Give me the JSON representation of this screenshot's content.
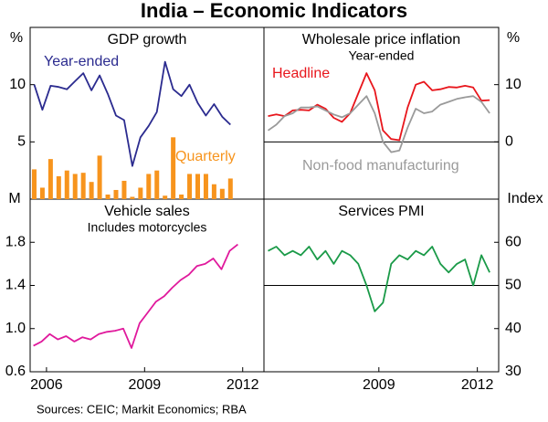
{
  "title": "India – Economic Indicators",
  "source": "Sources: CEIC; Markit Economics; RBA",
  "chart_data": [
    {
      "type": "combo",
      "title": "GDP growth",
      "y_unit": "%",
      "xlim": [
        2005.5,
        2012.65
      ],
      "ylim": [
        0,
        15
      ],
      "yticks": [
        5,
        10
      ],
      "x": [
        2005.625,
        2005.875,
        2006.125,
        2006.375,
        2006.625,
        2006.875,
        2007.125,
        2007.375,
        2007.625,
        2007.875,
        2008.125,
        2008.375,
        2008.625,
        2008.875,
        2009.125,
        2009.375,
        2009.625,
        2009.875,
        2010.125,
        2010.375,
        2010.625,
        2010.875,
        2011.125,
        2011.375,
        2011.625
      ],
      "series": [
        {
          "name": "Year-ended",
          "type": "line",
          "color": "#2b2b8f",
          "values": [
            10,
            7.8,
            9.9,
            9.8,
            9.6,
            10.3,
            11.0,
            9.5,
            10.8,
            9.2,
            7.3,
            6.9,
            2.9,
            5.4,
            6.4,
            7.6,
            12.0,
            9.6,
            9.0,
            10.0,
            8.4,
            7.3,
            8.3,
            7.2,
            6.5
          ]
        },
        {
          "name": "Quarterly",
          "type": "bar",
          "color": "#f7941d",
          "values": [
            2.6,
            1.0,
            3.5,
            2.0,
            2.5,
            2.2,
            2.3,
            1.5,
            3.8,
            0.4,
            0.8,
            1.6,
            0.2,
            1.0,
            2.2,
            2.5,
            0.3,
            5.4,
            0.4,
            2.2,
            2.2,
            2.2,
            1.3,
            0.9,
            1.8
          ]
        }
      ]
    },
    {
      "type": "line",
      "title": "Wholesale price inflation",
      "subtitle": "Year-ended",
      "y_unit": "%",
      "xlim": [
        2005.5,
        2012.65
      ],
      "ylim": [
        -10,
        20
      ],
      "yticks": [
        0,
        10
      ],
      "hline": 0,
      "x": [
        2005.625,
        2005.875,
        2006.125,
        2006.375,
        2006.625,
        2006.875,
        2007.125,
        2007.375,
        2007.625,
        2007.875,
        2008.125,
        2008.375,
        2008.625,
        2008.875,
        2009.125,
        2009.375,
        2009.625,
        2009.875,
        2010.125,
        2010.375,
        2010.625,
        2010.875,
        2011.125,
        2011.375,
        2011.625,
        2011.875,
        2012.125,
        2012.375
      ],
      "series": [
        {
          "name": "Headline",
          "color": "#e8161c",
          "values": [
            4.5,
            4.8,
            4.5,
            5.5,
            5.6,
            5.5,
            6.5,
            5.8,
            4.2,
            3.5,
            5.0,
            8.5,
            12.0,
            9.0,
            2.0,
            0.5,
            0.3,
            6.0,
            10.0,
            10.5,
            9.0,
            9.2,
            9.6,
            9.5,
            9.8,
            9.5,
            7.2,
            7.3
          ]
        },
        {
          "name": "Non-food manufacturing",
          "color": "#9a9a9a",
          "values": [
            2.0,
            3.0,
            4.5,
            5.0,
            6.0,
            6.0,
            6.2,
            5.5,
            4.8,
            4.3,
            5.0,
            6.5,
            8.0,
            5.0,
            0.0,
            -1.8,
            -1.5,
            2.5,
            5.8,
            5.0,
            5.3,
            6.5,
            7.0,
            7.5,
            7.8,
            8.0,
            7.0,
            5.0
          ]
        }
      ]
    },
    {
      "type": "line",
      "title": "Vehicle sales",
      "subtitle": "Includes motorcycles",
      "y_unit": "M",
      "xlim": [
        2005.5,
        2012.65
      ],
      "ylim": [
        0.6,
        2.2
      ],
      "yticks": [
        0.6,
        {
          "value": 1,
          "label": "1.0"
        },
        1.4,
        1.8
      ],
      "xticks": [
        2006,
        2009,
        2012
      ],
      "x": [
        2005.6,
        2005.85,
        2006.1,
        2006.35,
        2006.6,
        2006.85,
        2007.1,
        2007.35,
        2007.6,
        2007.85,
        2008.1,
        2008.35,
        2008.6,
        2008.85,
        2009.1,
        2009.35,
        2009.6,
        2009.85,
        2010.1,
        2010.35,
        2010.6,
        2010.85,
        2011.1,
        2011.35,
        2011.6,
        2011.85
      ],
      "series": [
        {
          "name": null,
          "color": "#e0199c",
          "values": [
            0.84,
            0.88,
            0.95,
            0.9,
            0.93,
            0.88,
            0.92,
            0.9,
            0.95,
            0.97,
            0.98,
            1.0,
            0.82,
            1.05,
            1.15,
            1.25,
            1.3,
            1.38,
            1.45,
            1.5,
            1.58,
            1.6,
            1.65,
            1.55,
            1.72,
            1.78
          ]
        }
      ]
    },
    {
      "type": "line",
      "title": "Services PMI",
      "y_unit": "Index",
      "xlim": [
        2005.5,
        2012.65
      ],
      "ylim": [
        30,
        70
      ],
      "yticks": [
        30,
        40,
        50,
        60
      ],
      "hline": 50,
      "xticks": [
        2009,
        2012
      ],
      "x": [
        2005.625,
        2005.875,
        2006.125,
        2006.375,
        2006.625,
        2006.875,
        2007.125,
        2007.375,
        2007.625,
        2007.875,
        2008.125,
        2008.375,
        2008.625,
        2008.875,
        2009.125,
        2009.375,
        2009.625,
        2009.875,
        2010.125,
        2010.375,
        2010.625,
        2010.875,
        2011.125,
        2011.375,
        2011.625,
        2011.875,
        2012.125,
        2012.375
      ],
      "series": [
        {
          "name": null,
          "color": "#1a9a48",
          "values": [
            58,
            59,
            57,
            58,
            57,
            59,
            56,
            58,
            55,
            58,
            57,
            55,
            50,
            44,
            46,
            55,
            57,
            56,
            58,
            57,
            59,
            55,
            53,
            55,
            56,
            50,
            57,
            53
          ]
        }
      ]
    }
  ]
}
